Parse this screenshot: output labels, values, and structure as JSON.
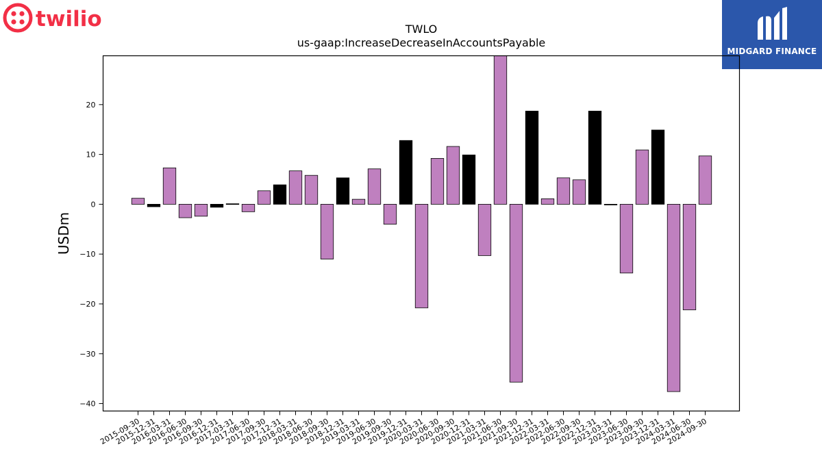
{
  "logos": {
    "left_text": "twilio",
    "right_text": "MIDGARD FINANCE"
  },
  "colors": {
    "bar_pink": "#bf80bf",
    "bar_black": "#000000",
    "brand_red": "#f22f46",
    "brand_blue": "#2b57ab"
  },
  "chart_data": {
    "type": "bar",
    "title": "TWLO",
    "subtitle": "us-gaap:IncreaseDecreaseInAccountsPayable",
    "xlabel": "",
    "ylabel": "USDm",
    "ylim": [
      -41.5,
      29.8
    ],
    "yticks": [
      -40,
      -30,
      -20,
      -10,
      0,
      10,
      20
    ],
    "grid": false,
    "categories": [
      "2015-09-30",
      "2015-12-31",
      "2016-03-31",
      "2016-06-30",
      "2016-09-30",
      "2016-12-31",
      "2017-03-31",
      "2017-06-30",
      "2017-09-30",
      "2017-12-31",
      "2018-03-31",
      "2018-06-30",
      "2018-09-30",
      "2018-12-31",
      "2019-03-31",
      "2019-06-30",
      "2019-09-30",
      "2019-12-31",
      "2020-03-31",
      "2020-06-30",
      "2020-09-30",
      "2020-12-31",
      "2021-03-31",
      "2021-06-30",
      "2021-09-30",
      "2021-12-31",
      "2022-03-31",
      "2022-06-30",
      "2022-09-30",
      "2022-12-31",
      "2023-03-31",
      "2023-06-30",
      "2023-09-30",
      "2023-12-31",
      "2024-03-31",
      "2024-06-30",
      "2024-09-30"
    ],
    "values": [
      1.2,
      -0.5,
      7.3,
      -2.7,
      -2.4,
      -0.6,
      0.1,
      -1.5,
      2.7,
      3.9,
      6.7,
      5.8,
      -11.0,
      5.3,
      1.0,
      7.1,
      -4.0,
      12.8,
      -20.8,
      9.2,
      11.6,
      9.9,
      -10.3,
      29.8,
      -35.7,
      18.7,
      1.1,
      5.3,
      4.9,
      18.7,
      -0.1,
      -13.8,
      10.9,
      14.9,
      -37.6,
      -21.2,
      9.7
    ],
    "bar_colors": [
      "pink",
      "black",
      "pink",
      "pink",
      "pink",
      "black",
      "black",
      "pink",
      "pink",
      "black",
      "pink",
      "pink",
      "pink",
      "black",
      "pink",
      "pink",
      "pink",
      "black",
      "pink",
      "pink",
      "pink",
      "black",
      "pink",
      "pink",
      "pink",
      "black",
      "pink",
      "pink",
      "pink",
      "black",
      "black",
      "pink",
      "pink",
      "black",
      "pink",
      "pink",
      "pink"
    ]
  }
}
